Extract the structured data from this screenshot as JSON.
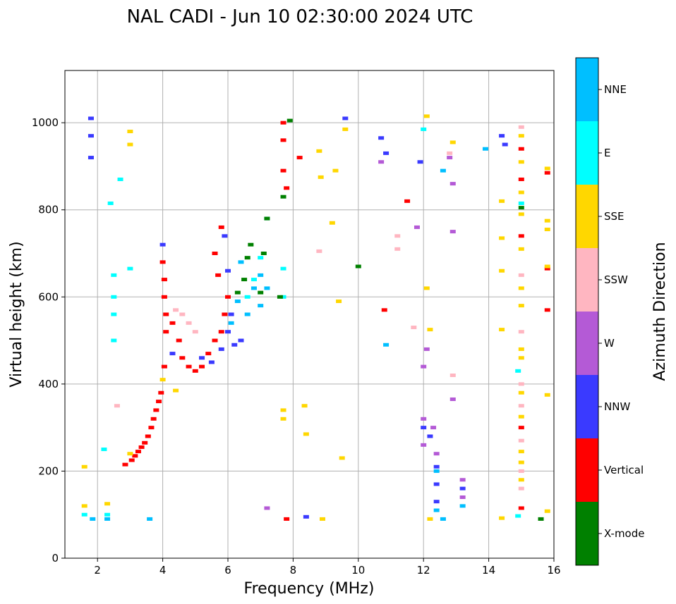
{
  "chart_data": {
    "type": "scatter",
    "title": "NAL CADI - Jun 10 02:30:00 2024 UTC",
    "xlabel": "Frequency (MHz)",
    "ylabel": "Virtual height (km)",
    "xlim": [
      1,
      16
    ],
    "ylim": [
      0,
      1120
    ],
    "xticks": [
      2,
      4,
      6,
      8,
      10,
      12,
      14,
      16
    ],
    "yticks": [
      0,
      200,
      400,
      600,
      800,
      1000
    ],
    "grid": true,
    "colorbar": {
      "label": "Azimuth Direction",
      "categories": [
        {
          "name": "X-mode",
          "color": "#008000"
        },
        {
          "name": "Vertical",
          "color": "#ff0000"
        },
        {
          "name": "NNW",
          "color": "#3a3aff"
        },
        {
          "name": "W",
          "color": "#b45ad6"
        },
        {
          "name": "SSW",
          "color": "#ffb6c1"
        },
        {
          "name": "SSE",
          "color": "#ffd700"
        },
        {
          "name": "E",
          "color": "#00ffff"
        },
        {
          "name": "NNE",
          "color": "#00bfff"
        }
      ]
    },
    "series": [
      {
        "name": "Vertical",
        "points": [
          [
            2.85,
            215
          ],
          [
            3.05,
            225
          ],
          [
            3.15,
            235
          ],
          [
            3.25,
            245
          ],
          [
            3.35,
            255
          ],
          [
            3.45,
            265
          ],
          [
            3.55,
            280
          ],
          [
            3.65,
            300
          ],
          [
            3.72,
            320
          ],
          [
            3.8,
            340
          ],
          [
            3.88,
            360
          ],
          [
            3.95,
            380
          ],
          [
            4.05,
            440
          ],
          [
            4.1,
            520
          ],
          [
            4.1,
            560
          ],
          [
            4.05,
            600
          ],
          [
            4.05,
            640
          ],
          [
            4.0,
            680
          ],
          [
            4.3,
            540
          ],
          [
            4.5,
            500
          ],
          [
            4.6,
            460
          ],
          [
            4.8,
            440
          ],
          [
            5.0,
            430
          ],
          [
            5.2,
            440
          ],
          [
            5.4,
            470
          ],
          [
            5.6,
            500
          ],
          [
            5.8,
            520
          ],
          [
            5.9,
            560
          ],
          [
            6.0,
            600
          ],
          [
            5.7,
            650
          ],
          [
            5.6,
            700
          ],
          [
            5.8,
            760
          ],
          [
            7.7,
            1000
          ],
          [
            7.7,
            960
          ],
          [
            7.7,
            890
          ],
          [
            7.8,
            850
          ],
          [
            8.2,
            920
          ],
          [
            7.8,
            90
          ],
          [
            10.8,
            570
          ],
          [
            11.5,
            820
          ],
          [
            15.0,
            940
          ],
          [
            15.0,
            870
          ],
          [
            15.0,
            740
          ],
          [
            15.0,
            300
          ],
          [
            15.0,
            115
          ],
          [
            15.8,
            570
          ],
          [
            15.8,
            885
          ],
          [
            15.8,
            665
          ]
        ]
      },
      {
        "name": "NNW",
        "points": [
          [
            1.8,
            1010
          ],
          [
            1.8,
            970
          ],
          [
            1.8,
            920
          ],
          [
            4.0,
            720
          ],
          [
            4.3,
            470
          ],
          [
            5.2,
            460
          ],
          [
            5.5,
            450
          ],
          [
            5.8,
            480
          ],
          [
            6.0,
            520
          ],
          [
            6.2,
            490
          ],
          [
            6.4,
            500
          ],
          [
            6.1,
            560
          ],
          [
            5.9,
            740
          ],
          [
            6.0,
            660
          ],
          [
            10.7,
            965
          ],
          [
            10.85,
            930
          ],
          [
            11.9,
            910
          ],
          [
            12.4,
            210
          ],
          [
            12.4,
            170
          ],
          [
            12.4,
            130
          ],
          [
            13.2,
            160
          ],
          [
            14.4,
            970
          ],
          [
            14.5,
            950
          ],
          [
            9.6,
            1010
          ],
          [
            12.0,
            300
          ],
          [
            12.2,
            280
          ],
          [
            8.4,
            95
          ]
        ]
      },
      {
        "name": "W",
        "points": [
          [
            11.8,
            760
          ],
          [
            12.8,
            920
          ],
          [
            12.9,
            860
          ],
          [
            12.3,
            300
          ],
          [
            12.4,
            240
          ],
          [
            13.2,
            180
          ],
          [
            13.2,
            140
          ],
          [
            12.1,
            480
          ],
          [
            12.0,
            440
          ],
          [
            12.0,
            320
          ],
          [
            12.0,
            260
          ],
          [
            10.7,
            910
          ],
          [
            12.9,
            750
          ],
          [
            12.9,
            365
          ],
          [
            7.2,
            115
          ]
        ]
      },
      {
        "name": "SSW",
        "points": [
          [
            4.4,
            570
          ],
          [
            4.6,
            560
          ],
          [
            4.8,
            540
          ],
          [
            5.0,
            520
          ],
          [
            11.7,
            530
          ],
          [
            12.8,
            930
          ],
          [
            12.9,
            420
          ],
          [
            15.0,
            990
          ],
          [
            15.0,
            650
          ],
          [
            15.0,
            520
          ],
          [
            15.0,
            400
          ],
          [
            15.0,
            350
          ],
          [
            15.0,
            270
          ],
          [
            15.0,
            200
          ],
          [
            15.0,
            160
          ],
          [
            2.6,
            350
          ],
          [
            11.2,
            710
          ],
          [
            11.2,
            740
          ],
          [
            8.8,
            705
          ]
        ]
      },
      {
        "name": "SSE",
        "points": [
          [
            1.6,
            210
          ],
          [
            1.6,
            120
          ],
          [
            2.3,
            125
          ],
          [
            3.0,
            980
          ],
          [
            3.0,
            950
          ],
          [
            3.0,
            240
          ],
          [
            4.0,
            410
          ],
          [
            4.4,
            385
          ],
          [
            7.7,
            340
          ],
          [
            7.7,
            320
          ],
          [
            8.35,
            350
          ],
          [
            8.4,
            285
          ],
          [
            8.8,
            935
          ],
          [
            8.85,
            875
          ],
          [
            8.9,
            90
          ],
          [
            9.2,
            770
          ],
          [
            9.3,
            890
          ],
          [
            9.4,
            590
          ],
          [
            9.5,
            230
          ],
          [
            9.6,
            985
          ],
          [
            12.1,
            1015
          ],
          [
            12.1,
            620
          ],
          [
            12.2,
            525
          ],
          [
            12.2,
            90
          ],
          [
            12.9,
            955
          ],
          [
            14.4,
            820
          ],
          [
            14.4,
            735
          ],
          [
            14.4,
            660
          ],
          [
            14.4,
            525
          ],
          [
            14.4,
            92
          ],
          [
            15.0,
            970
          ],
          [
            15.0,
            910
          ],
          [
            15.0,
            840
          ],
          [
            15.0,
            790
          ],
          [
            15.0,
            710
          ],
          [
            15.0,
            620
          ],
          [
            15.0,
            580
          ],
          [
            15.0,
            480
          ],
          [
            15.0,
            460
          ],
          [
            15.0,
            380
          ],
          [
            15.0,
            325
          ],
          [
            15.0,
            245
          ],
          [
            15.0,
            220
          ],
          [
            15.0,
            180
          ],
          [
            15.8,
            895
          ],
          [
            15.8,
            775
          ],
          [
            15.8,
            755
          ],
          [
            15.8,
            670
          ],
          [
            15.8,
            375
          ],
          [
            15.8,
            108
          ]
        ]
      },
      {
        "name": "E",
        "points": [
          [
            2.5,
            650
          ],
          [
            2.5,
            600
          ],
          [
            2.5,
            560
          ],
          [
            2.5,
            500
          ],
          [
            3.0,
            665
          ],
          [
            2.7,
            870
          ],
          [
            2.4,
            815
          ],
          [
            6.6,
            600
          ],
          [
            6.8,
            640
          ],
          [
            7.0,
            690
          ],
          [
            7.2,
            780
          ],
          [
            7.7,
            600
          ],
          [
            7.7,
            665
          ],
          [
            12.0,
            985
          ],
          [
            14.9,
            430
          ],
          [
            14.9,
            97
          ],
          [
            15.0,
            815
          ],
          [
            1.6,
            100
          ],
          [
            2.3,
            100
          ],
          [
            2.2,
            250
          ]
        ]
      },
      {
        "name": "NNE",
        "points": [
          [
            6.1,
            540
          ],
          [
            6.3,
            590
          ],
          [
            6.4,
            680
          ],
          [
            6.6,
            560
          ],
          [
            6.8,
            620
          ],
          [
            7.0,
            580
          ],
          [
            7.2,
            620
          ],
          [
            7.0,
            650
          ],
          [
            10.85,
            490
          ],
          [
            12.6,
            890
          ],
          [
            13.9,
            940
          ],
          [
            12.4,
            110
          ],
          [
            12.6,
            90
          ],
          [
            12.4,
            200
          ],
          [
            13.2,
            120
          ],
          [
            2.3,
            90
          ],
          [
            1.85,
            90
          ],
          [
            3.6,
            90
          ]
        ]
      },
      {
        "name": "X-mode",
        "points": [
          [
            6.3,
            610
          ],
          [
            6.5,
            640
          ],
          [
            6.6,
            690
          ],
          [
            6.7,
            720
          ],
          [
            7.1,
            700
          ],
          [
            7.2,
            780
          ],
          [
            7.0,
            610
          ],
          [
            7.6,
            600
          ],
          [
            10.0,
            670
          ],
          [
            15.6,
            90
          ],
          [
            15.0,
            805
          ],
          [
            7.9,
            1005
          ],
          [
            7.7,
            830
          ]
        ]
      }
    ]
  }
}
